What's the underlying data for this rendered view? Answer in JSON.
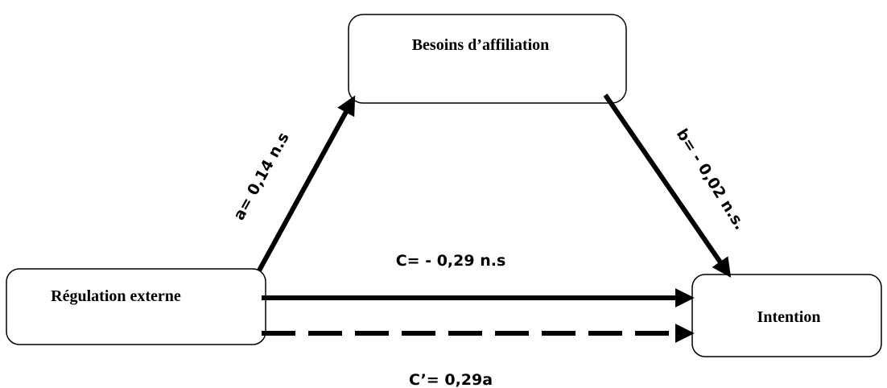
{
  "nodes": [
    {
      "label": "Besoins d’affiliation"
    },
    {
      "label": "Régulation externe"
    },
    {
      "label": "Intention"
    }
  ],
  "edges": [
    {
      "label": "a= 0,14 n.s"
    },
    {
      "label": "b= - 0,02 n.s."
    },
    {
      "label": "C= - 0,29 n.s"
    },
    {
      "label": "C’= 0,29a"
    }
  ]
}
